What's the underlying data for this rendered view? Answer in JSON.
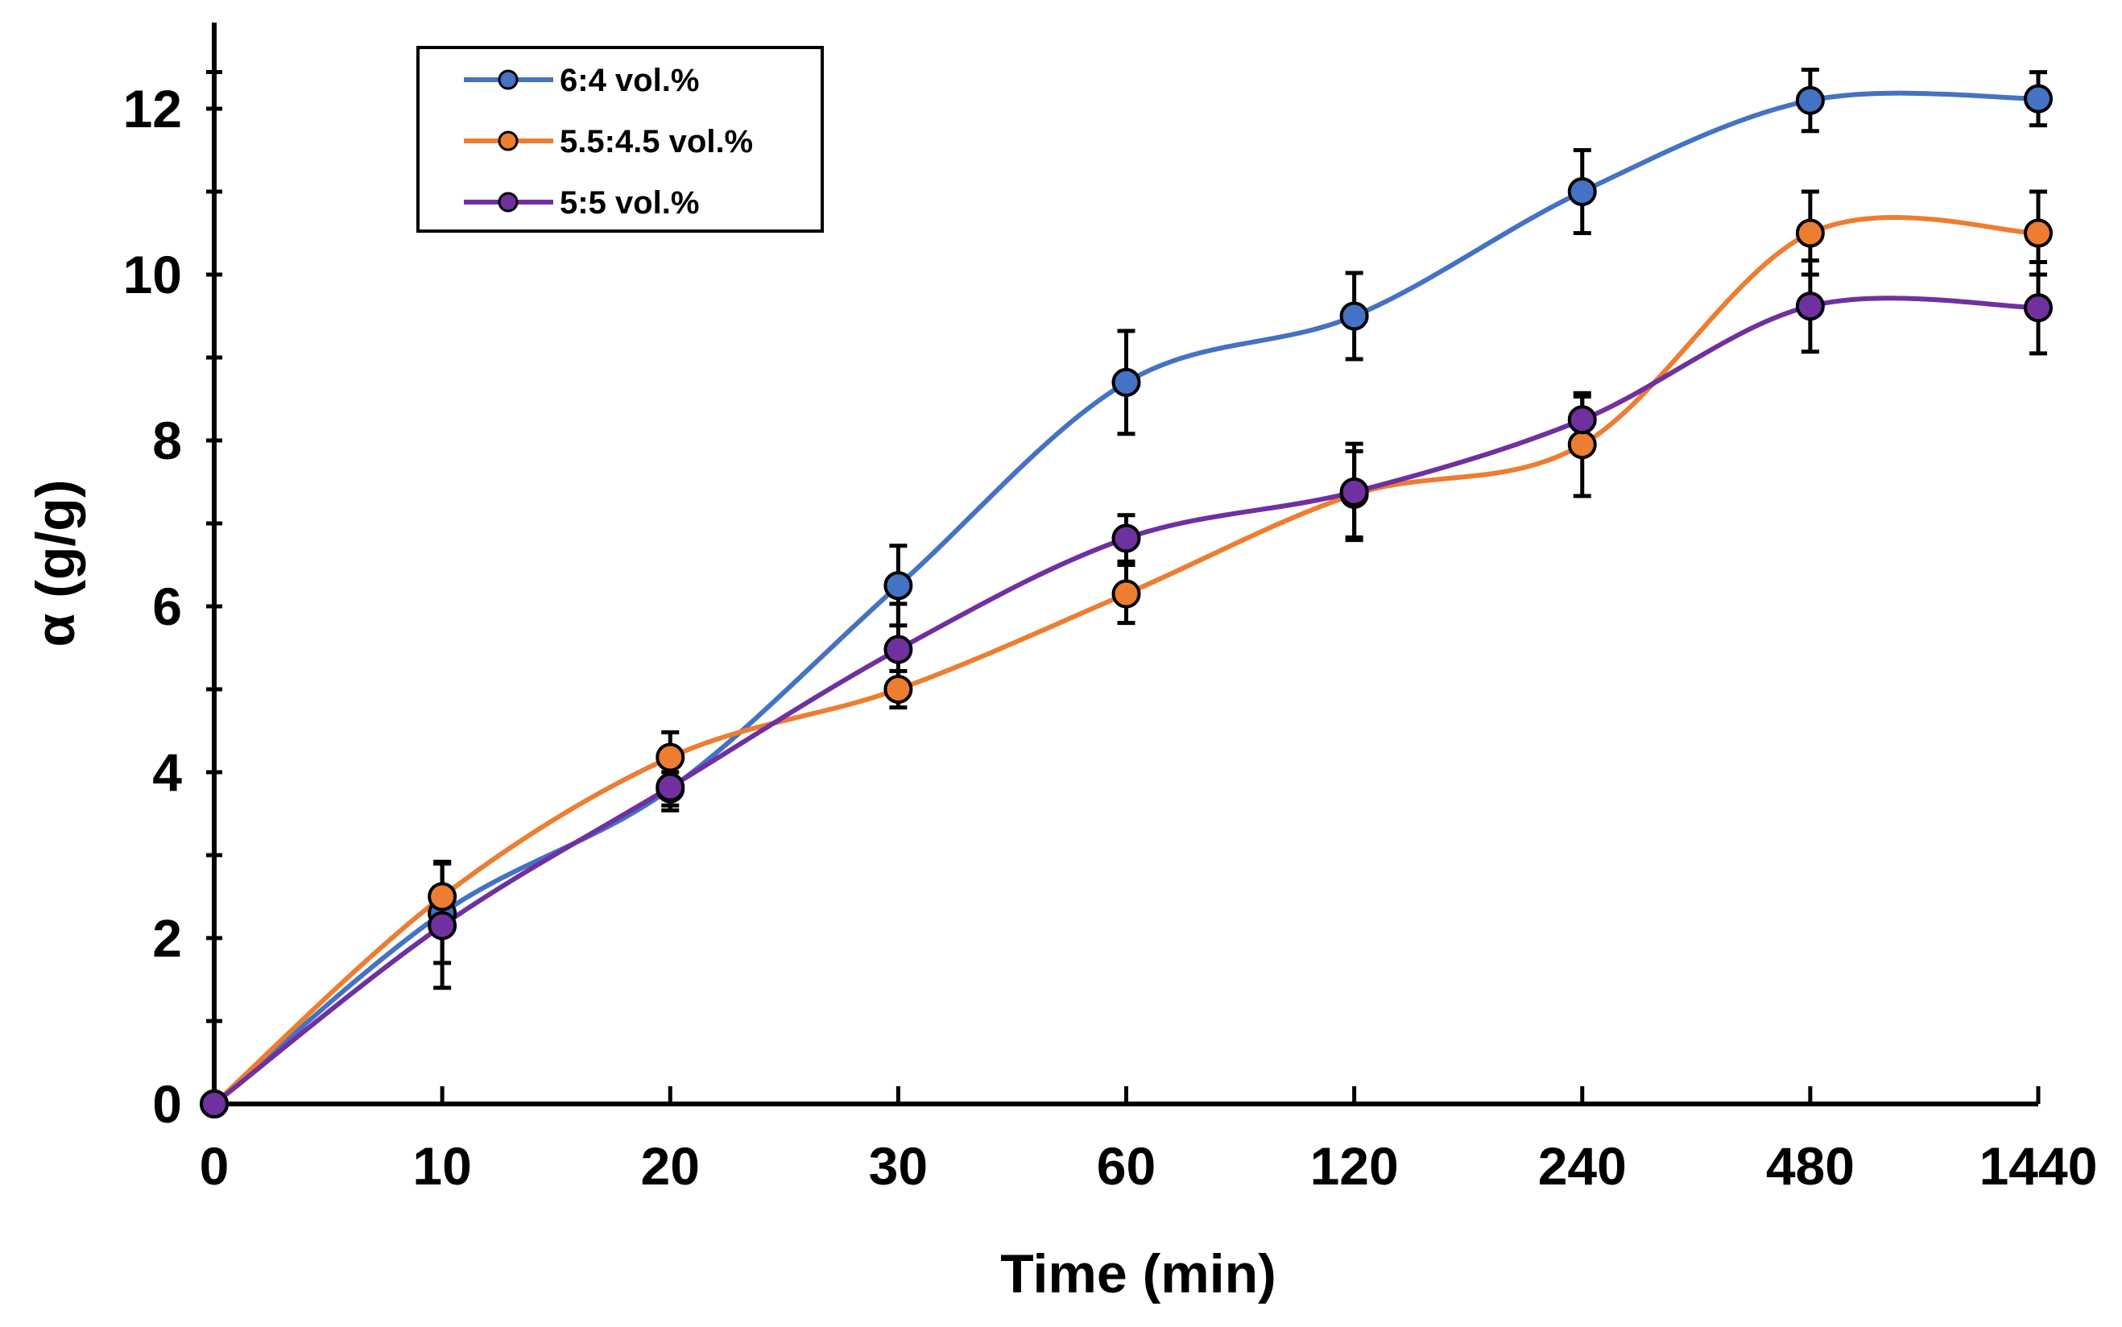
{
  "chart_data": {
    "type": "line",
    "title": "",
    "xlabel": "Time (min)",
    "ylabel": "α (g/g)",
    "categories": [
      "0",
      "10",
      "20",
      "30",
      "60",
      "120",
      "240",
      "480",
      "1440"
    ],
    "ylim": [
      0,
      12.5
    ],
    "y_ticks": [
      0,
      2,
      4,
      6,
      8,
      10,
      12
    ],
    "grid": false,
    "legend_position": "top-left",
    "smooth": true,
    "series": [
      {
        "name": "6:4 vol.%",
        "color": "#4472C4",
        "values": [
          0,
          2.3,
          3.8,
          6.25,
          8.7,
          9.5,
          11.0,
          12.1,
          12.12
        ],
        "errors": [
          0,
          0.6,
          0.2,
          0.48,
          0.62,
          0.52,
          0.5,
          0.37,
          0.32
        ]
      },
      {
        "name": "5.5:4.5 vol.%",
        "color": "#ED7D31",
        "values": [
          0,
          2.5,
          4.18,
          5.0,
          6.15,
          7.35,
          7.95,
          10.5,
          10.5
        ],
        "errors": [
          0,
          0.42,
          0.3,
          0.22,
          0.35,
          0.52,
          0.62,
          0.5,
          0.5
        ]
      },
      {
        "name": "5:5 vol.%",
        "color": "#7030A0",
        "values": [
          0,
          2.15,
          3.82,
          5.48,
          6.82,
          7.38,
          8.25,
          9.62,
          9.6
        ],
        "errors": [
          0,
          0.75,
          0.28,
          0.55,
          0.28,
          0.58,
          0.28,
          0.55,
          0.55
        ]
      }
    ]
  }
}
